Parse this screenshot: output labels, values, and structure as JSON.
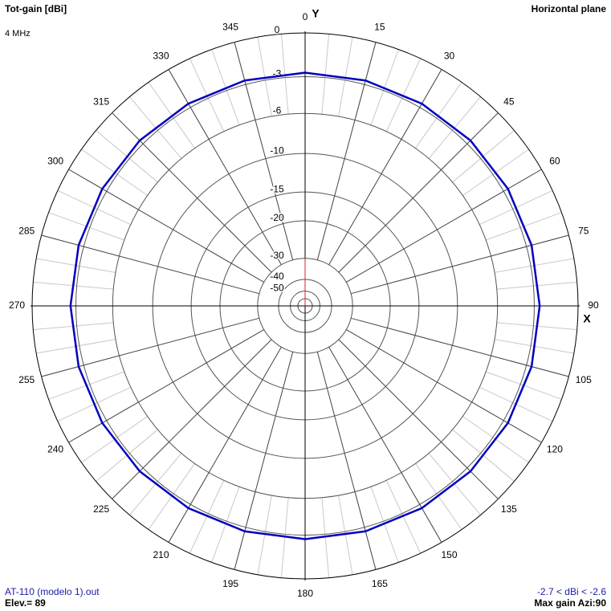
{
  "chart_data": {
    "type": "polar",
    "title": "Tot-gain [dBi]",
    "subtitle": "4 MHz",
    "plane": "Horizontal plane",
    "y_axis_label": "Y",
    "x_axis_label": "X",
    "file": "AT-110 (modelo 1).out",
    "elevation": "Elev.= 89",
    "range_text": "-2.7 < dBi < -2.6",
    "max_gain": "Max gain Azi:90",
    "x": [
      0,
      15,
      30,
      45,
      60,
      75,
      90,
      105,
      120,
      135,
      150,
      165,
      180,
      195,
      210,
      225,
      240,
      255,
      270,
      285,
      300,
      315,
      330,
      345,
      360
    ],
    "values": [
      -2.7,
      -2.69,
      -2.68,
      -2.65,
      -2.63,
      -2.61,
      -2.6,
      -2.61,
      -2.63,
      -2.65,
      -2.68,
      -2.69,
      -2.7,
      -2.69,
      -2.68,
      -2.65,
      -2.63,
      -2.61,
      -2.6,
      -2.61,
      -2.63,
      -2.65,
      -2.68,
      -2.69,
      -2.7
    ],
    "color": "#0000c0",
    "xticks": [
      0,
      15,
      30,
      45,
      60,
      75,
      90,
      105,
      120,
      135,
      150,
      165,
      180,
      195,
      210,
      225,
      240,
      255,
      270,
      285,
      300,
      315,
      330,
      345
    ],
    "rticks": [
      0,
      -3,
      -6,
      -10,
      -15,
      -20,
      -30,
      -40,
      -50
    ],
    "rscale": "arrl-log",
    "grid": true
  }
}
